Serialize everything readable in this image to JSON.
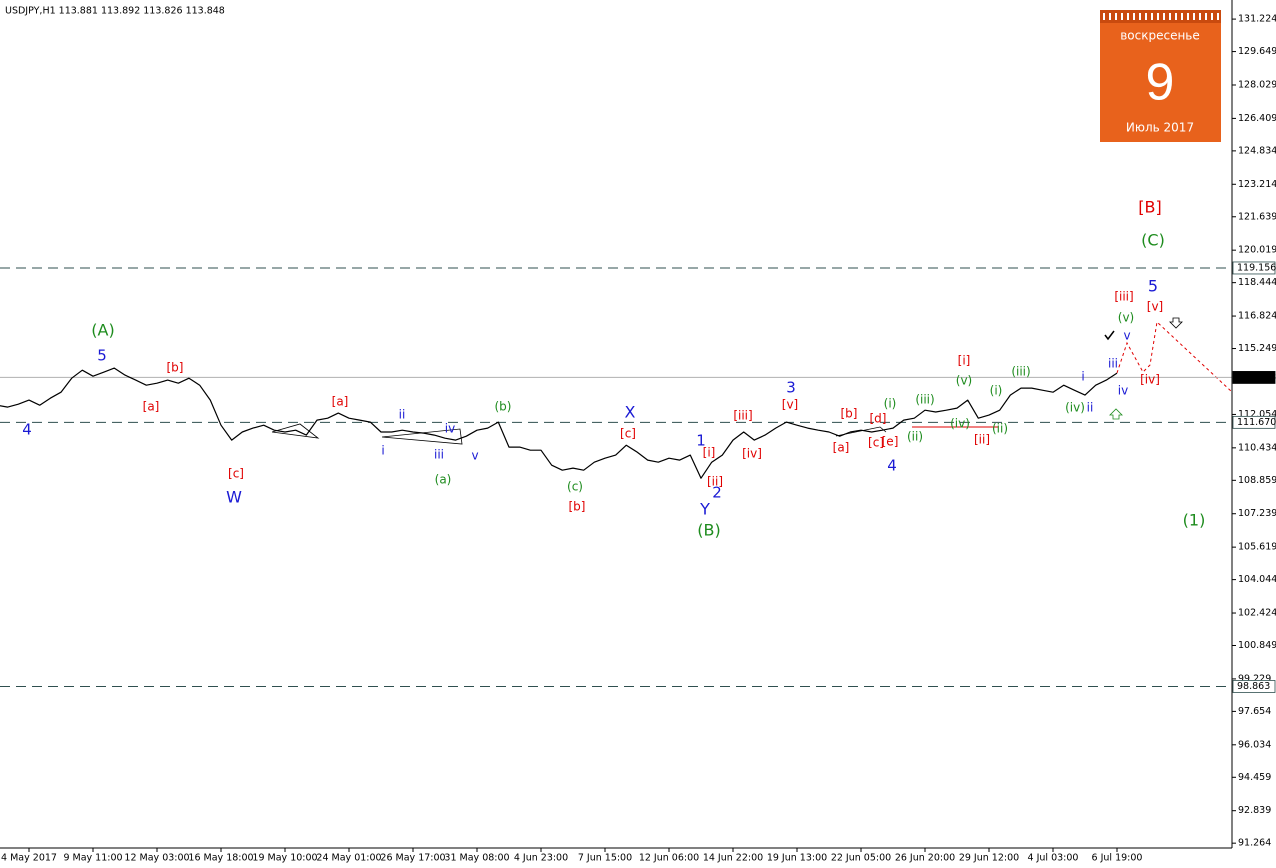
{
  "header": "USDJPY,H1  113.881 113.892 113.826 113.848",
  "calendar": {
    "weekday": "воскресенье",
    "day": "9",
    "month_year": "Июль 2017"
  },
  "chart_data": {
    "type": "line",
    "color": "#000000",
    "grid": false,
    "ylim": [
      91.03,
      132.15
    ],
    "yticks": [
      131.224,
      129.649,
      128.029,
      126.409,
      124.834,
      123.214,
      121.639,
      120.019,
      118.444,
      116.824,
      115.249,
      112.054,
      110.434,
      108.859,
      107.239,
      105.619,
      104.044,
      102.424,
      100.849,
      99.229,
      97.654,
      96.034,
      94.459,
      92.839,
      91.264
    ],
    "levels": [
      {
        "value": 119.156,
        "style": "dashed"
      },
      {
        "value": 113.848,
        "style": "current"
      },
      {
        "value": 111.67,
        "label": "111.670",
        "style": "dashed"
      },
      {
        "value": 98.863,
        "style": "dashed"
      }
    ],
    "categories": [
      null,
      null,
      null,
      "4 May 2017",
      null,
      null,
      null,
      null,
      null,
      "9 May 11:00",
      null,
      null,
      null,
      null,
      null,
      "12 May 03:00",
      null,
      null,
      null,
      null,
      null,
      "16 May 18:00",
      null,
      null,
      null,
      null,
      null,
      "19 May 10:00",
      null,
      null,
      null,
      null,
      null,
      "24 May 01:00",
      null,
      null,
      null,
      null,
      null,
      "26 May 17:00",
      null,
      null,
      null,
      null,
      null,
      "31 May 08:00",
      null,
      null,
      null,
      null,
      null,
      "4 Jun 23:00",
      null,
      null,
      null,
      null,
      null,
      "7 Jun 15:00",
      null,
      null,
      null,
      null,
      null,
      "12 Jun 06:00",
      null,
      null,
      null,
      null,
      null,
      "14 Jun 22:00",
      null,
      null,
      null,
      null,
      null,
      "19 Jun 13:00",
      null,
      null,
      null,
      null,
      null,
      "22 Jun 05:00",
      null,
      null,
      null,
      null,
      null,
      "26 Jun 20:00",
      null,
      null,
      null,
      null,
      null,
      "29 Jun 12:00",
      null,
      null,
      null,
      null,
      null,
      "4 Jul 03:00",
      null,
      null,
      null,
      null,
      null,
      "6 Jul 19:00"
    ],
    "values": [
      112.5,
      112.41,
      112.55,
      112.75,
      112.5,
      112.84,
      113.13,
      113.81,
      114.2,
      113.91,
      114.1,
      114.3,
      113.96,
      113.72,
      113.47,
      113.57,
      113.72,
      113.57,
      113.81,
      113.47,
      112.75,
      111.53,
      110.81,
      111.2,
      111.39,
      111.53,
      111.29,
      111.2,
      111.29,
      111.05,
      111.78,
      111.87,
      112.12,
      111.87,
      111.78,
      111.68,
      111.2,
      111.2,
      111.29,
      111.2,
      111.15,
      111.05,
      110.9,
      110.81,
      111.0,
      111.29,
      111.39,
      111.68,
      110.47,
      110.47,
      110.32,
      110.32,
      109.59,
      109.35,
      109.45,
      109.35,
      109.74,
      109.93,
      110.08,
      110.56,
      110.23,
      109.84,
      109.74,
      109.93,
      109.84,
      110.08,
      108.96,
      109.74,
      110.08,
      110.81,
      111.2,
      110.81,
      111.05,
      111.39,
      111.68,
      111.53,
      111.39,
      111.29,
      111.2,
      111.0,
      111.2,
      111.29,
      111.2,
      111.29,
      111.39,
      111.78,
      111.87,
      112.26,
      112.17,
      112.26,
      112.36,
      112.75,
      111.87,
      112.02,
      112.26,
      112.99,
      113.33,
      113.33,
      113.23,
      113.13,
      113.47,
      113.23,
      112.99,
      113.47,
      113.72,
      114.06
    ],
    "annotations": [
      {
        "text": "4",
        "color": "#1a1ad4"
      },
      {
        "text": "(A)",
        "color": "#1e8c1e"
      },
      {
        "text": "5",
        "color": "#1a1ad4"
      },
      {
        "text": "[b]",
        "color": "#e00000"
      },
      {
        "text": "[a]",
        "color": "#e00000"
      },
      {
        "text": "[c]",
        "color": "#e00000"
      },
      {
        "text": "W",
        "color": "#1a1ad4"
      },
      {
        "text": "[a]",
        "color": "#e00000"
      },
      {
        "text": "ii",
        "color": "#1a1ad4"
      },
      {
        "text": "i",
        "color": "#1a1ad4"
      },
      {
        "text": "iv",
        "color": "#1a1ad4"
      },
      {
        "text": "iii",
        "color": "#1a1ad4"
      },
      {
        "text": "v",
        "color": "#1a1ad4"
      },
      {
        "text": "(b)",
        "color": "#1e8c1e"
      },
      {
        "text": "(a)",
        "color": "#1e8c1e"
      },
      {
        "text": "X",
        "color": "#1a1ad4"
      },
      {
        "text": "[c]",
        "color": "#e00000"
      },
      {
        "text": "(c)",
        "color": "#1e8c1e"
      },
      {
        "text": "[b]",
        "color": "#e00000"
      },
      {
        "text": "1",
        "color": "#1a1ad4"
      },
      {
        "text": "[i]",
        "color": "#e00000"
      },
      {
        "text": "[ii]",
        "color": "#e00000"
      },
      {
        "text": "2",
        "color": "#1a1ad4"
      },
      {
        "text": "Y",
        "color": "#1a1ad4"
      },
      {
        "text": "(B)",
        "color": "#1e8c1e"
      },
      {
        "text": "[iii]",
        "color": "#e00000"
      },
      {
        "text": "[iv]",
        "color": "#e00000"
      },
      {
        "text": "3",
        "color": "#1a1ad4"
      },
      {
        "text": "[v]",
        "color": "#e00000"
      },
      {
        "text": "[b]",
        "color": "#e00000"
      },
      {
        "text": "[d]",
        "color": "#e00000"
      },
      {
        "text": "[a]",
        "color": "#e00000"
      },
      {
        "text": "[c]",
        "color": "#e00000"
      },
      {
        "text": "[e]",
        "color": "#e00000"
      },
      {
        "text": "4",
        "color": "#1a1ad4"
      },
      {
        "text": "(i)",
        "color": "#1e8c1e"
      },
      {
        "text": "(ii)",
        "color": "#1e8c1e"
      },
      {
        "text": "(iii)",
        "color": "#1e8c1e"
      },
      {
        "text": "(iv)",
        "color": "#1e8c1e"
      },
      {
        "text": "(v)",
        "color": "#1e8c1e"
      },
      {
        "text": "[i]",
        "color": "#e00000"
      },
      {
        "text": "[ii]",
        "color": "#e00000"
      },
      {
        "text": "(i)",
        "color": "#1e8c1e"
      },
      {
        "text": "(ii)",
        "color": "#1e8c1e"
      },
      {
        "text": "(iii)",
        "color": "#1e8c1e"
      },
      {
        "text": "i",
        "color": "#1a1ad4"
      },
      {
        "text": "(iv)",
        "color": "#1e8c1e"
      },
      {
        "text": "ii",
        "color": "#1a1ad4"
      },
      {
        "text": "iii",
        "color": "#1a1ad4"
      },
      {
        "text": "iv",
        "color": "#1a1ad4"
      },
      {
        "text": "(v)",
        "color": "#1e8c1e"
      },
      {
        "text": "v",
        "color": "#1a1ad4"
      },
      {
        "text": "[iii]",
        "color": "#e00000"
      },
      {
        "text": "[v]",
        "color": "#e00000"
      },
      {
        "text": "[iv]",
        "color": "#e00000"
      },
      {
        "text": "5",
        "color": "#1a1ad4"
      },
      {
        "text": "[B]",
        "color": "#e00000"
      },
      {
        "text": "(C)",
        "color": "#1e8c1e"
      },
      {
        "text": "(1)",
        "color": "#1e8c1e"
      }
    ]
  }
}
